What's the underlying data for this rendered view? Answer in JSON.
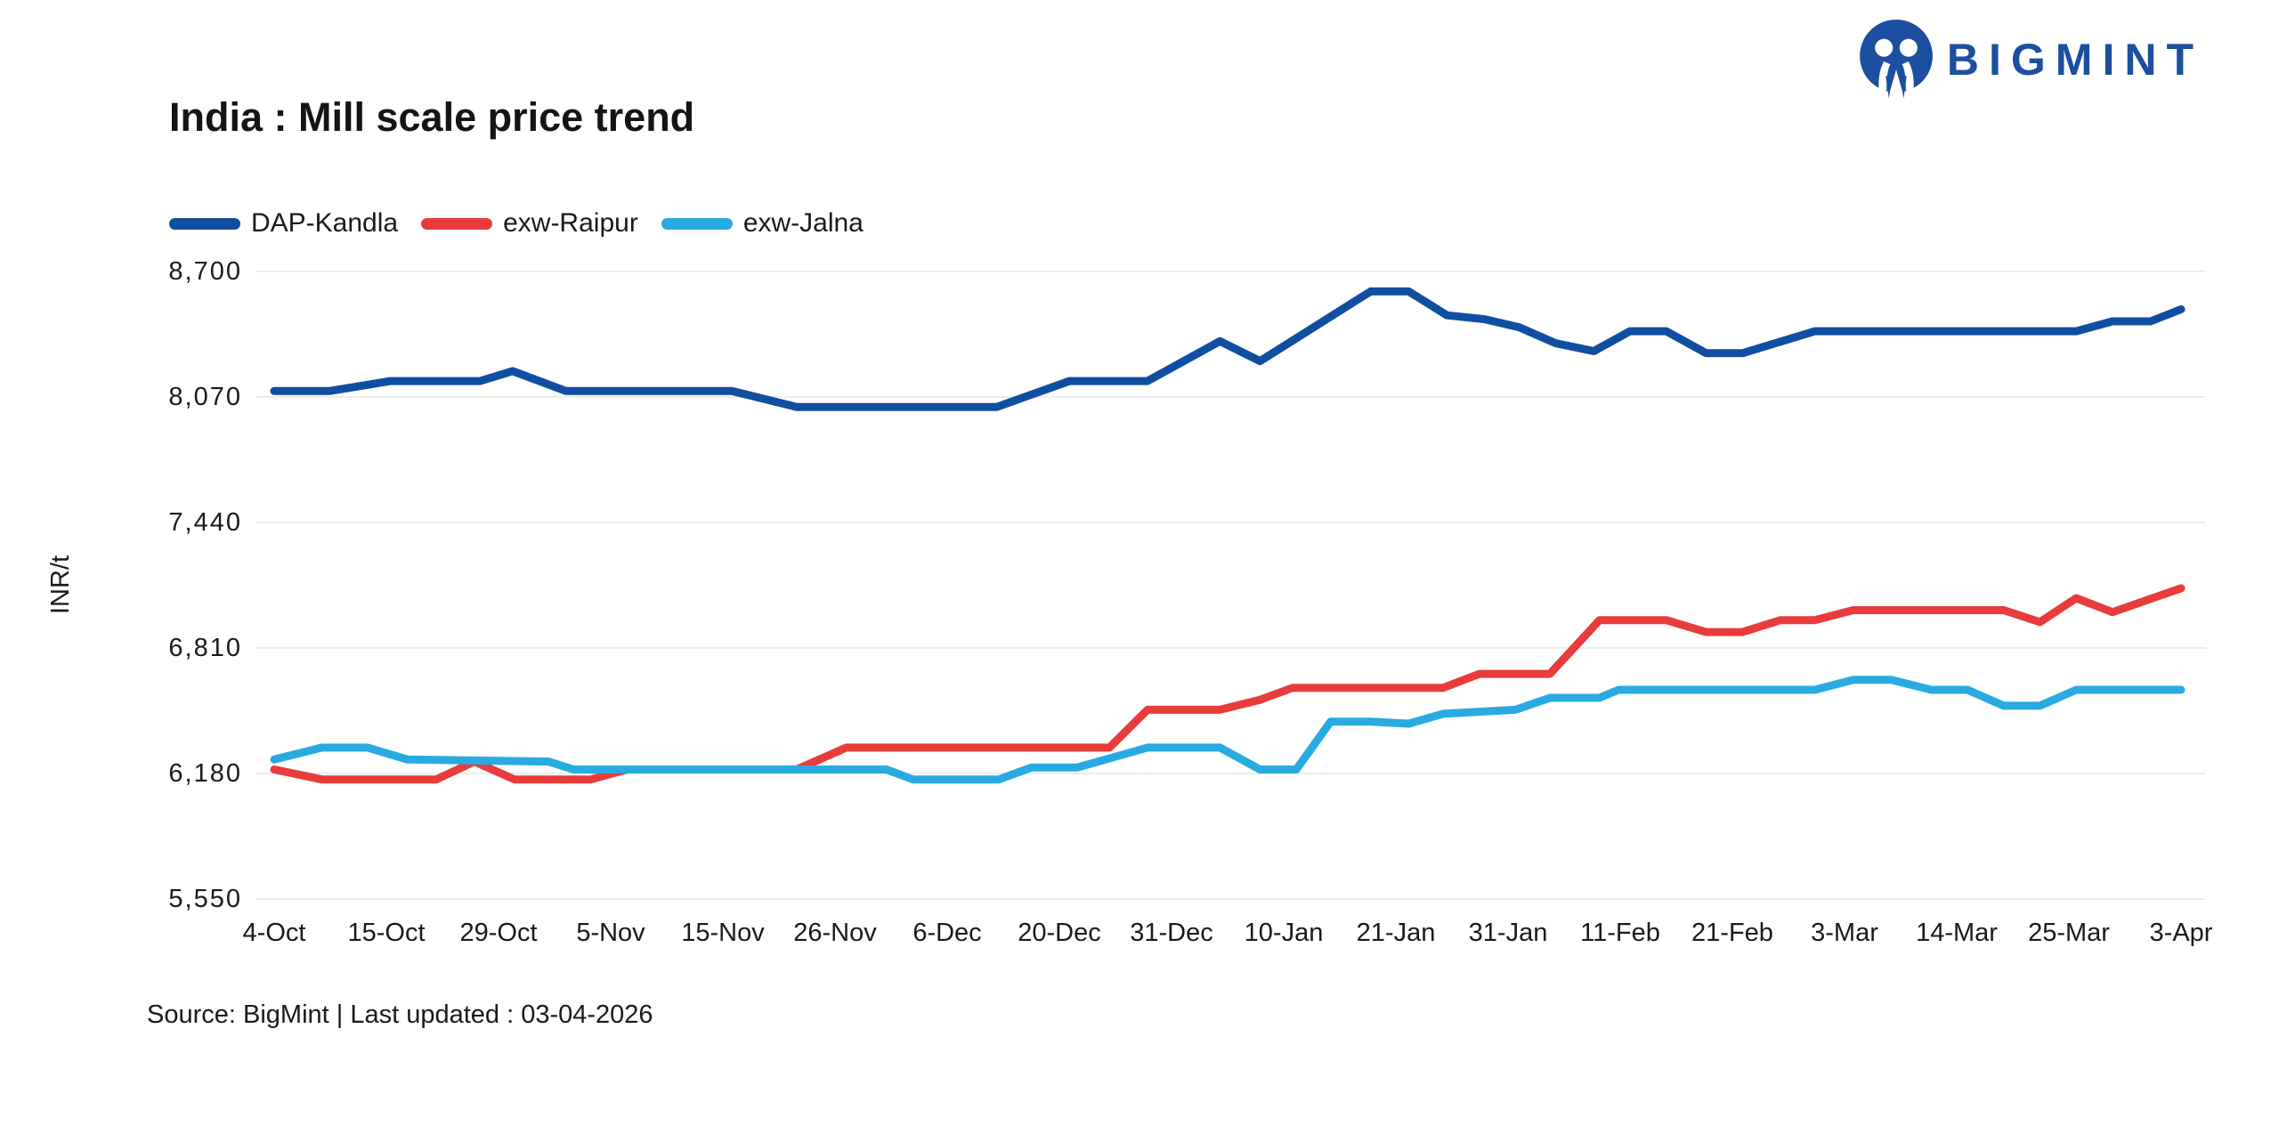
{
  "logo": {
    "text": "BIGMINT",
    "brand_color": "#1C4F9F",
    "icon": "two-people-m-circle-icon"
  },
  "footer": {
    "source_text": "Source: BigMint | Last updated : 03-04-2026"
  },
  "colors": {
    "background": "#FFFFFF",
    "grid": "#EDEDED",
    "text": "#1A1A1A"
  },
  "chart_data": {
    "type": "line",
    "title": "India : Mill scale price trend",
    "xlabel": "",
    "ylabel": "INR/t",
    "ylim": [
      5550,
      8700
    ],
    "yticks": [
      8700,
      8070,
      7440,
      6810,
      6180,
      5550
    ],
    "xticklabels": [
      "4-Oct",
      "15-Oct",
      "29-Oct",
      "5-Nov",
      "15-Nov",
      "26-Nov",
      "6-Dec",
      "20-Dec",
      "31-Dec",
      "10-Jan",
      "21-Jan",
      "31-Jan",
      "11-Feb",
      "21-Feb",
      "3-Mar",
      "14-Mar",
      "25-Mar",
      "3-Apr"
    ],
    "grid": "horizontal-only",
    "legend_position": "top-left",
    "points_format": "each point = [fraction of date axis (4-Oct = 0, 3-Apr = 1), price in INR/t]",
    "series": [
      {
        "name": "DAP-Kandla",
        "color": "#104EA2",
        "points": [
          [
            0.0,
            8100
          ],
          [
            0.029,
            8100
          ],
          [
            0.061,
            8150
          ],
          [
            0.108,
            8150
          ],
          [
            0.125,
            8200
          ],
          [
            0.153,
            8100
          ],
          [
            0.24,
            8100
          ],
          [
            0.274,
            8020
          ],
          [
            0.379,
            8020
          ],
          [
            0.417,
            8150
          ],
          [
            0.458,
            8150
          ],
          [
            0.496,
            8350
          ],
          [
            0.517,
            8250
          ],
          [
            0.575,
            8600
          ],
          [
            0.595,
            8600
          ],
          [
            0.615,
            8480
          ],
          [
            0.635,
            8460
          ],
          [
            0.653,
            8420
          ],
          [
            0.672,
            8340
          ],
          [
            0.692,
            8300
          ],
          [
            0.711,
            8400
          ],
          [
            0.73,
            8400
          ],
          [
            0.751,
            8290
          ],
          [
            0.77,
            8290
          ],
          [
            0.808,
            8400
          ],
          [
            0.945,
            8400
          ],
          [
            0.964,
            8450
          ],
          [
            0.984,
            8450
          ],
          [
            1.0,
            8510
          ]
        ]
      },
      {
        "name": "exw-Raipur",
        "color": "#E83C3C",
        "points": [
          [
            0.0,
            6200
          ],
          [
            0.025,
            6150
          ],
          [
            0.085,
            6150
          ],
          [
            0.105,
            6240
          ],
          [
            0.126,
            6150
          ],
          [
            0.166,
            6150
          ],
          [
            0.185,
            6200
          ],
          [
            0.274,
            6200
          ],
          [
            0.3,
            6310
          ],
          [
            0.438,
            6310
          ],
          [
            0.458,
            6500
          ],
          [
            0.496,
            6500
          ],
          [
            0.517,
            6550
          ],
          [
            0.534,
            6610
          ],
          [
            0.613,
            6610
          ],
          [
            0.632,
            6680
          ],
          [
            0.669,
            6680
          ],
          [
            0.695,
            6950
          ],
          [
            0.73,
            6950
          ],
          [
            0.751,
            6890
          ],
          [
            0.77,
            6890
          ],
          [
            0.79,
            6950
          ],
          [
            0.808,
            6950
          ],
          [
            0.828,
            7000
          ],
          [
            0.907,
            7000
          ],
          [
            0.926,
            6940
          ],
          [
            0.945,
            7060
          ],
          [
            0.964,
            6990
          ],
          [
            1.0,
            7110
          ]
        ]
      },
      {
        "name": "exw-Jalna",
        "color": "#29ABE2",
        "points": [
          [
            0.0,
            6250
          ],
          [
            0.025,
            6310
          ],
          [
            0.049,
            6310
          ],
          [
            0.07,
            6250
          ],
          [
            0.144,
            6240
          ],
          [
            0.157,
            6200
          ],
          [
            0.321,
            6200
          ],
          [
            0.335,
            6150
          ],
          [
            0.38,
            6150
          ],
          [
            0.397,
            6210
          ],
          [
            0.421,
            6210
          ],
          [
            0.458,
            6310
          ],
          [
            0.496,
            6310
          ],
          [
            0.517,
            6200
          ],
          [
            0.536,
            6200
          ],
          [
            0.554,
            6440
          ],
          [
            0.575,
            6440
          ],
          [
            0.595,
            6430
          ],
          [
            0.613,
            6480
          ],
          [
            0.651,
            6500
          ],
          [
            0.669,
            6560
          ],
          [
            0.695,
            6560
          ],
          [
            0.705,
            6600
          ],
          [
            0.808,
            6600
          ],
          [
            0.828,
            6650
          ],
          [
            0.848,
            6650
          ],
          [
            0.869,
            6600
          ],
          [
            0.888,
            6600
          ],
          [
            0.907,
            6520
          ],
          [
            0.926,
            6520
          ],
          [
            0.945,
            6600
          ],
          [
            1.0,
            6600
          ]
        ]
      }
    ]
  }
}
